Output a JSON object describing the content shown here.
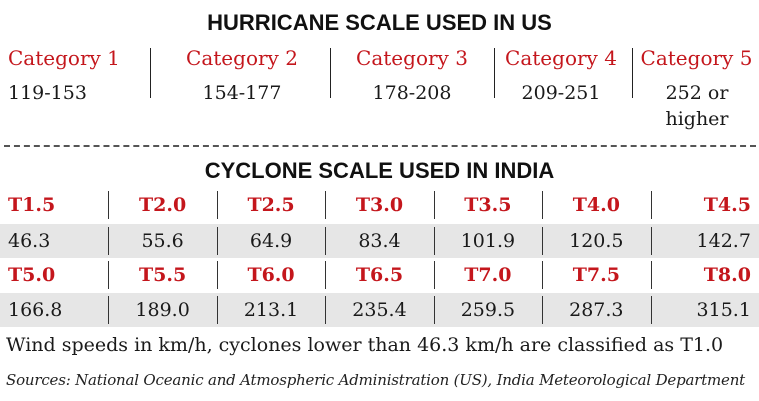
{
  "hurricane": {
    "title": "HURRICANE SCALE USED IN US",
    "categories": [
      {
        "label": "Category 1",
        "range": "119-153"
      },
      {
        "label": "Category 2",
        "range": "154-177"
      },
      {
        "label": "Category 3",
        "range": "178-208"
      },
      {
        "label": "Category 4",
        "range": "209-251"
      },
      {
        "label": "Category 5",
        "range": "252 or higher"
      }
    ]
  },
  "cyclone": {
    "title": "CYCLONE SCALE USED IN INDIA",
    "row1_codes": [
      "T1.5",
      "T2.0",
      "T2.5",
      "T3.0",
      "T3.5",
      "T4.0",
      "T4.5"
    ],
    "row1_values": [
      "46.3",
      "55.6",
      "64.9",
      "83.4",
      "101.9",
      "120.5",
      "142.7"
    ],
    "row2_codes": [
      "T5.0",
      "T5.5",
      "T6.0",
      "T6.5",
      "T7.0",
      "T7.5",
      "T8.0"
    ],
    "row2_values": [
      "166.8",
      "189.0",
      "213.1",
      "235.4",
      "259.5",
      "287.3",
      "315.1"
    ]
  },
  "note": "Wind speeds in km/h, cyclones lower than 46.3 km/h are classified as T1.0",
  "sources": "Sources: National Oceanic and Atmospheric Administration (US), India Meteorological Department",
  "colors": {
    "accent": "#c4161c",
    "row_fill": "#e6e6e6",
    "text": "#1a1a1a"
  }
}
